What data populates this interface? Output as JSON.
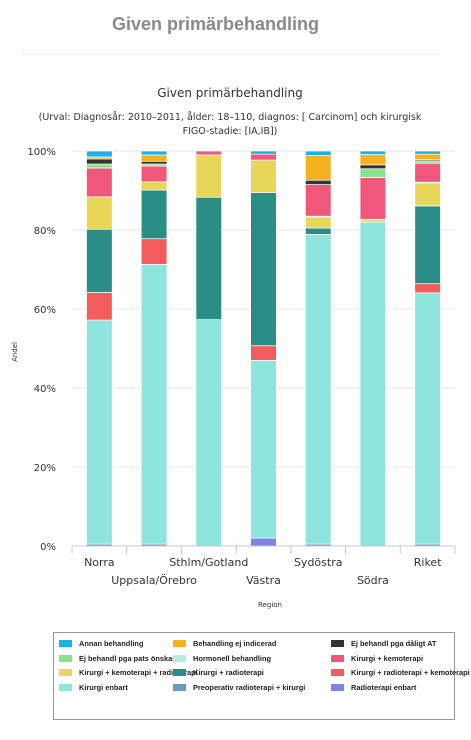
{
  "page": {
    "title": "Given primärbehandling"
  },
  "chart_data": {
    "type": "bar",
    "stacked": true,
    "title": "Given primärbehandling",
    "subtitle_lines": [
      "(Urval: Diagnosår: 2010–2011, ålder: 18–110, diagnos: [ Carcinom] och kirurgisk",
      "FIGO-stadie: [IA,IB])"
    ],
    "xlabel": "Region",
    "ylabel": "Andel",
    "ylim": [
      0,
      100
    ],
    "ytick_labels": [
      "0%",
      "20%",
      "40%",
      "60%",
      "80%",
      "100%"
    ],
    "categories": [
      "Norra",
      "Uppsala/Örebro",
      "Sthlm/Gotland",
      "Västra",
      "Sydöstra",
      "Södra",
      "Riket"
    ],
    "series": [
      {
        "name": "Radioterapi enbart",
        "color": "#7e84e6",
        "values": [
          0,
          0,
          0,
          2,
          0,
          0,
          0
        ]
      },
      {
        "name": "Preoperativ radioterapi + kirurgi",
        "color": "#6c98ba",
        "values": [
          0.5,
          0.5,
          0,
          0,
          0.5,
          0,
          0.5
        ]
      },
      {
        "name": "Kirurgi enbart",
        "color": "#8de5de",
        "values": [
          56.7,
          70.8,
          57.3,
          45,
          78.4,
          82,
          63.6
        ]
      },
      {
        "name": "Kirurgi + radioterapi + kemoterapi",
        "color": "#f25c5c",
        "values": [
          7,
          6.5,
          0,
          3.7,
          0,
          0,
          2.3
        ]
      },
      {
        "name": "Kirurgi + radioterapi",
        "color": "#2a8d86",
        "values": [
          16,
          12.3,
          31,
          38.8,
          1.6,
          0,
          19.7
        ]
      },
      {
        "name": "Kirurgi + kemoterapi + radioterapi",
        "color": "#e8d659",
        "values": [
          8.2,
          2.1,
          10.7,
          8.2,
          2.8,
          0.6,
          5.8
        ]
      },
      {
        "name": "Hormonell behandling",
        "color": "#b5ece6",
        "values": [
          0,
          0,
          0,
          0,
          0.2,
          0.1,
          0.2
        ]
      },
      {
        "name": "Kirurgi + kemoterapi",
        "color": "#f0587b",
        "values": [
          7.3,
          4,
          1.0,
          1.5,
          8,
          10.6,
          4.8
        ]
      },
      {
        "name": "Ej behandl pga pats önskan",
        "color": "#85e58d",
        "values": [
          1,
          0.5,
          0,
          0,
          0,
          2.2,
          0.6
        ]
      },
      {
        "name": "Ej behandl pga dåligt AT",
        "color": "#333333",
        "values": [
          1.3,
          0.7,
          0,
          0,
          1.1,
          1.0,
          0.3
        ]
      },
      {
        "name": "Behandling ej indicerad",
        "color": "#f5b11f",
        "values": [
          0.5,
          1.6,
          0,
          0,
          6.3,
          2.6,
          1.4
        ]
      },
      {
        "name": "Annan behandling",
        "color": "#19b3e6",
        "values": [
          1.5,
          1.0,
          0,
          0.8,
          1.1,
          0.9,
          0.8
        ]
      }
    ],
    "legend_order": [
      "Annan behandling",
      "Behandling ej indicerad",
      "Ej behandl pga dåligt AT",
      "Ej behandl pga pats önskan",
      "Hormonell behandling",
      "Kirurgi + kemoterapi",
      "Kirurgi + kemoterapi + radioterapi",
      "Kirurgi + radioterapi",
      "Kirurgi + radioterapi + kemoterapi",
      "Kirurgi enbart",
      "Preoperativ radioterapi + kirurgi",
      "Radioterapi enbart"
    ],
    "legend_position": "bottom",
    "grid": true
  }
}
